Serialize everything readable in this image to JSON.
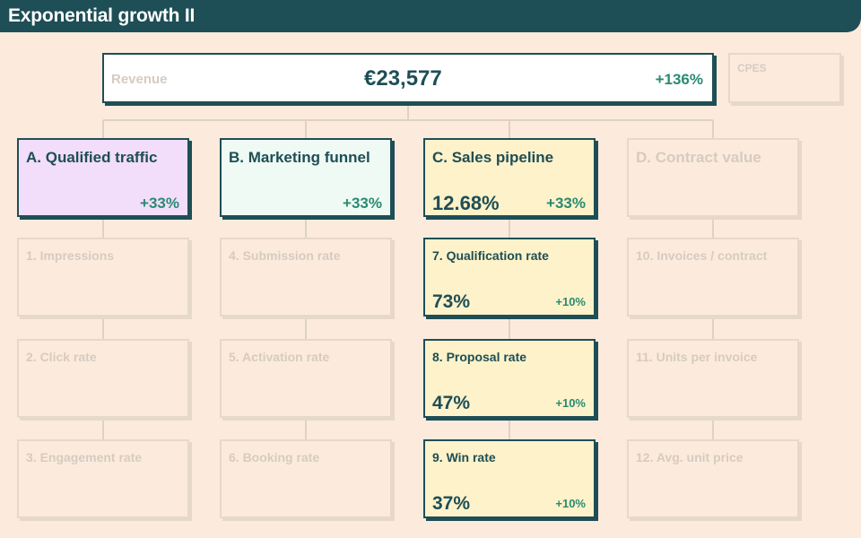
{
  "header": {
    "title": "Exponential growth II"
  },
  "revenue": {
    "label": "Revenue",
    "value": "€23,577",
    "change": "+136%"
  },
  "cpes": {
    "label": "CPES"
  },
  "drivers": [
    {
      "label": "A. Qualified traffic",
      "value": "",
      "change": "+33%"
    },
    {
      "label": "B. Marketing funnel",
      "value": "",
      "change": "+33%"
    },
    {
      "label": "C. Sales pipeline",
      "value": "12.68%",
      "change": "+33%"
    },
    {
      "label": "D. Contract value",
      "value": "",
      "change": ""
    }
  ],
  "metrics": {
    "col1": [
      {
        "label": "1. Impressions"
      },
      {
        "label": "2. Click rate"
      },
      {
        "label": "3. Engagement rate"
      }
    ],
    "col2": [
      {
        "label": "4. Submission rate"
      },
      {
        "label": "5. Activation rate"
      },
      {
        "label": "6. Booking rate"
      }
    ],
    "col3": [
      {
        "label": "7. Qualification rate",
        "value": "73%",
        "change": "+10%"
      },
      {
        "label": "8. Proposal rate",
        "value": "47%",
        "change": "+10%"
      },
      {
        "label": "9. Win rate",
        "value": "37%",
        "change": "+10%"
      }
    ],
    "col4": [
      {
        "label": "10. Invoices / contract"
      },
      {
        "label": "11. Units per invoice"
      },
      {
        "label": "12. Avg. unit price"
      }
    ]
  },
  "colors": {
    "header": "#1e4e56",
    "background": "#fcebdd",
    "positive_change": "#2a8a72",
    "driver_a": "#f2ddfa",
    "driver_b": "#eefaf3",
    "driver_c": "#fdf2c9",
    "muted": "#d6cbc1"
  }
}
